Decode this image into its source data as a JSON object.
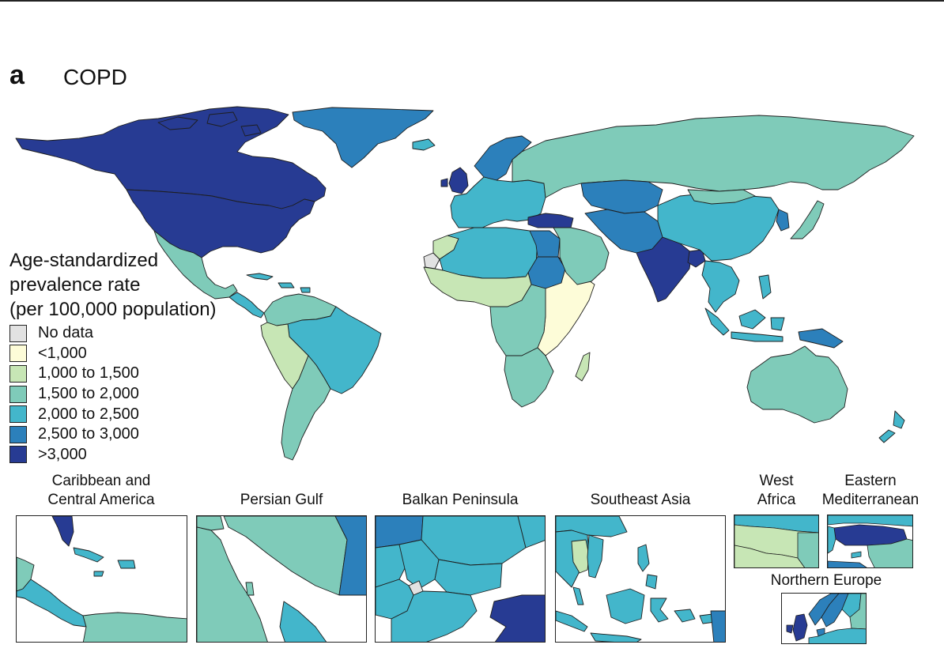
{
  "figure": {
    "panel_letter": "a",
    "title": "COPD"
  },
  "legend": {
    "title_lines": [
      "Age-standardized",
      "prevalence rate",
      "(per 100,000 population)"
    ],
    "items": [
      {
        "label": "No data",
        "color": "#e2e2e2"
      },
      {
        "label": "<1,000",
        "color": "#fdfcd8"
      },
      {
        "label": "1,000 to 1,500",
        "color": "#c7e6b5"
      },
      {
        "label": "1,500 to 2,000",
        "color": "#7fcbb9"
      },
      {
        "label": "2,000 to 2,500",
        "color": "#43b6cb"
      },
      {
        "label": "2,500 to 3,000",
        "color": "#2c80bb"
      },
      {
        "label": ">3,000",
        "color": "#273b93"
      }
    ]
  },
  "insets": [
    {
      "id": "caribbean",
      "label_lines": [
        "Caribbean and",
        "Central America"
      ]
    },
    {
      "id": "persian-gulf",
      "label_lines": [
        "Persian Gulf"
      ]
    },
    {
      "id": "balkan",
      "label_lines": [
        "Balkan Peninsula"
      ]
    },
    {
      "id": "southeast-asia",
      "label_lines": [
        "Southeast Asia"
      ]
    },
    {
      "id": "west-africa",
      "label_lines": [
        "West",
        "Africa"
      ]
    },
    {
      "id": "eastern-med",
      "label_lines": [
        "Eastern",
        "Mediterranean"
      ]
    },
    {
      "id": "northern-europe",
      "label_lines": [
        "Northern Europe"
      ]
    }
  ],
  "regions": {
    "greenland": "2,500 to 3,000",
    "canada": ">3,000",
    "united-states": ">3,000",
    "mexico": "1,500 to 2,000",
    "central-america": "2,000 to 2,500",
    "colombia-venezuela": "1,500 to 2,000",
    "brazil": "2,000 to 2,500",
    "peru-andes": "1,000 to 1,500",
    "argentina-chile": "1,500 to 2,000",
    "western-sahara": "No data",
    "morocco": "1,000 to 1,500",
    "west-africa": "1,000 to 1,500",
    "north-africa": "2,000 to 2,500",
    "egypt": "2,500 to 3,000",
    "sudan": "2,500 to 3,000",
    "east-africa": "<1,000",
    "central-africa": "1,500 to 2,000",
    "southern-africa": "1,500 to 2,000",
    "madagascar": "1,000 to 1,500",
    "united-kingdom": ">3,000",
    "europe": "2,000 to 2,500",
    "scandinavia": "2,500 to 3,000",
    "russia": "1,500 to 2,000",
    "kazakhstan": "2,500 to 3,000",
    "turkey": ">3,000",
    "middle-east": "1,500 to 2,000",
    "iran-pakistan": "2,500 to 3,000",
    "india": ">3,000",
    "bangladesh": ">3,000",
    "china": "2,000 to 2,500",
    "mongolia": "1,500 to 2,000",
    "japan": "1,500 to 2,000",
    "korea": "2,500 to 3,000",
    "southeast-asia": "2,000 to 2,500",
    "indonesia": "2,000 to 2,500",
    "papua-new-guinea": "2,500 to 3,000",
    "australia": "1,500 to 2,000",
    "new-zealand": "2,000 to 2,500"
  }
}
